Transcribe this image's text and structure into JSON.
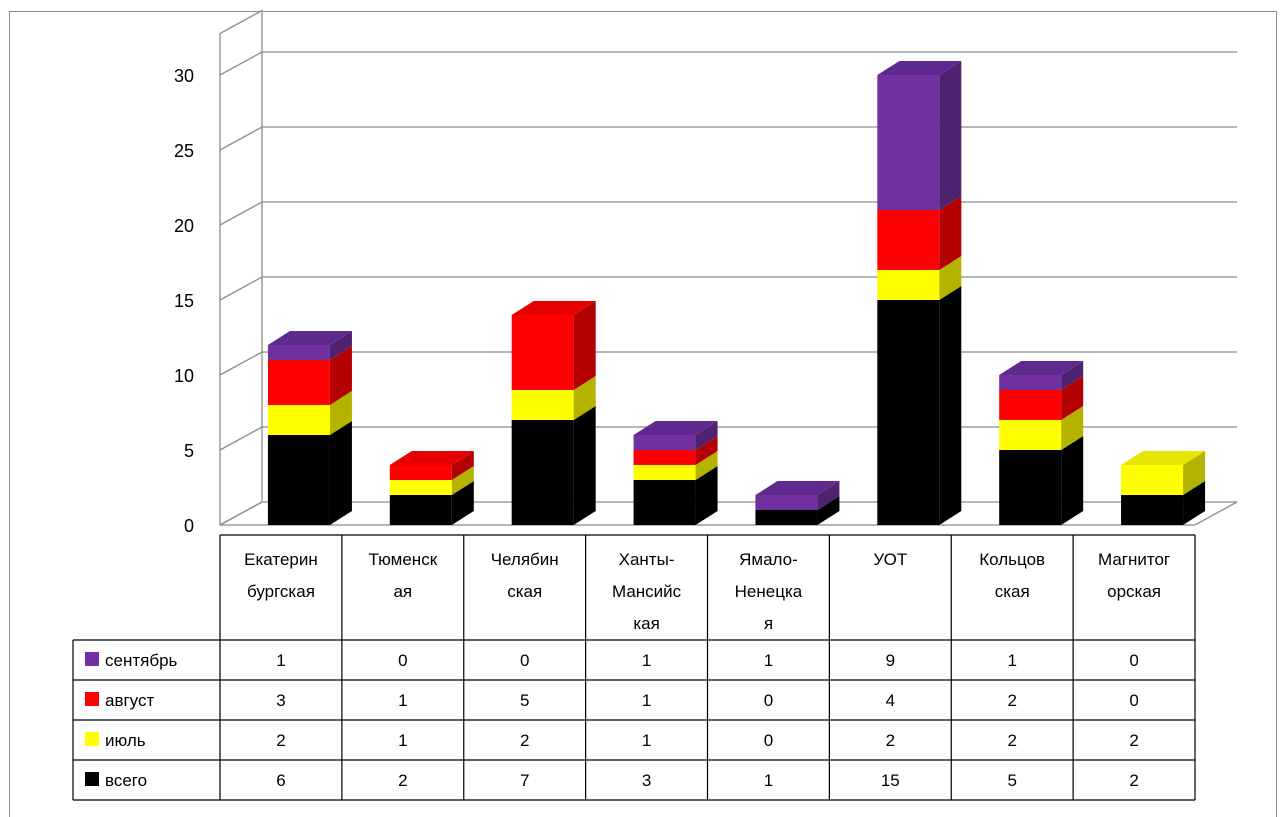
{
  "chart_data": {
    "type": "bar",
    "stacked": true,
    "three_d": true,
    "categories": [
      [
        "Екатерин",
        "бургская"
      ],
      [
        "Тюменск",
        "ая"
      ],
      [
        "Челябин",
        "ская"
      ],
      [
        "Ханты-",
        "Мансийс",
        "кая"
      ],
      [
        "Ямало-",
        "Ненецка",
        "я"
      ],
      [
        "УОТ"
      ],
      [
        "Кольцов",
        "ская"
      ],
      [
        "Магнитог",
        "орская"
      ]
    ],
    "series": [
      {
        "name": "всего",
        "color": "#000000",
        "side": "#000000",
        "top": "#1a1a1a",
        "values": [
          6,
          2,
          7,
          3,
          1,
          15,
          5,
          2
        ]
      },
      {
        "name": "июль",
        "color": "#ffff00",
        "side": "#b3b300",
        "top": "#e6e600",
        "values": [
          2,
          1,
          2,
          1,
          0,
          2,
          2,
          2
        ]
      },
      {
        "name": "август",
        "color": "#ff0000",
        "side": "#b30000",
        "top": "#e60000",
        "values": [
          3,
          1,
          5,
          1,
          0,
          4,
          2,
          0
        ]
      },
      {
        "name": "сентябрь",
        "color": "#7030a0",
        "side": "#4e2270",
        "top": "#5f2990",
        "values": [
          1,
          0,
          0,
          1,
          1,
          9,
          1,
          0
        ]
      }
    ],
    "yticks": [
      "0",
      "5",
      "10",
      "15",
      "20",
      "25",
      "30"
    ],
    "ylim": [
      0,
      30
    ],
    "grid": true,
    "legend": "data-table",
    "table_row_order": [
      "сентябрь",
      "август",
      "июль",
      "всего"
    ]
  }
}
